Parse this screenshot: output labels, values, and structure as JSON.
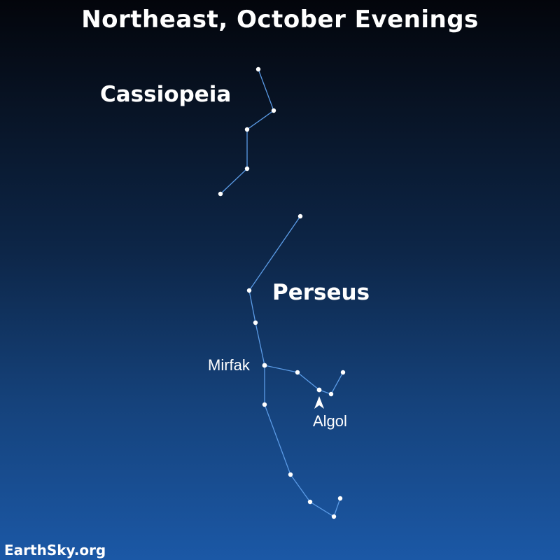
{
  "title": "Northeast, October Evenings",
  "credit": "EarthSky.org",
  "colors": {
    "line": "#5b9be6",
    "star": "#ffffff"
  },
  "constellations": {
    "cassiopeia": {
      "name": "Cassiopeia"
    },
    "perseus": {
      "name": "Perseus"
    }
  },
  "stars": {
    "mirfak": {
      "name": "Mirfak"
    },
    "algol": {
      "name": "Algol"
    }
  }
}
